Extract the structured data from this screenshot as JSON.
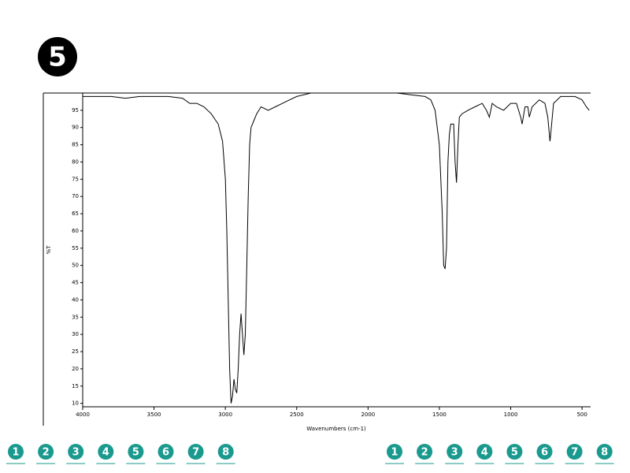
{
  "badge": "5",
  "nav_left": [
    "1",
    "2",
    "3",
    "4",
    "5",
    "6",
    "7",
    "8"
  ],
  "nav_right": [
    "1",
    "2",
    "3",
    "4",
    "5",
    "6",
    "7",
    "8"
  ],
  "chart_data": {
    "type": "line",
    "xlabel": "Wavenumbers (cm-1)",
    "ylabel": "%T",
    "color": "#000000",
    "xlim": [
      4000,
      440
    ],
    "ylim": [
      9,
      100
    ],
    "xticks": [
      4000,
      3500,
      3000,
      2500,
      2000,
      1500,
      1000,
      500
    ],
    "yticks": [
      10,
      15,
      20,
      25,
      30,
      35,
      40,
      45,
      50,
      55,
      60,
      65,
      70,
      75,
      80,
      85,
      90,
      95
    ],
    "x": [
      4000,
      3900,
      3800,
      3700,
      3600,
      3500,
      3400,
      3300,
      3250,
      3200,
      3150,
      3100,
      3050,
      3020,
      3000,
      2990,
      2980,
      2970,
      2960,
      2950,
      2940,
      2930,
      2920,
      2910,
      2900,
      2890,
      2880,
      2870,
      2860,
      2850,
      2840,
      2830,
      2820,
      2800,
      2780,
      2750,
      2700,
      2650,
      2600,
      2550,
      2500,
      2400,
      2200,
      2000,
      1800,
      1700,
      1600,
      1560,
      1530,
      1500,
      1480,
      1470,
      1460,
      1450,
      1440,
      1430,
      1420,
      1400,
      1390,
      1380,
      1370,
      1360,
      1340,
      1300,
      1250,
      1200,
      1170,
      1150,
      1130,
      1100,
      1050,
      1000,
      960,
      930,
      920,
      900,
      880,
      870,
      850,
      800,
      760,
      740,
      725,
      720,
      700,
      650,
      600,
      550,
      500,
      470,
      450
    ],
    "values": [
      99,
      99,
      99,
      98.5,
      99,
      99,
      99,
      98.5,
      97,
      97,
      96,
      94,
      91,
      86,
      75,
      60,
      40,
      20,
      10,
      12,
      17,
      14,
      13,
      20,
      30,
      36,
      30,
      24,
      30,
      50,
      70,
      85,
      90,
      92,
      94,
      96,
      95,
      96,
      97,
      98,
      99,
      100,
      100,
      100,
      100,
      99.5,
      99,
      98,
      95,
      85,
      65,
      50,
      49,
      55,
      80,
      88,
      91,
      91,
      80,
      74,
      85,
      93,
      94,
      95,
      96,
      97,
      95,
      93,
      97,
      96,
      95,
      97,
      97,
      93,
      91,
      96,
      96,
      93,
      96,
      98,
      97,
      93,
      86,
      88,
      97,
      99,
      99,
      99,
      98,
      96,
      95
    ]
  }
}
